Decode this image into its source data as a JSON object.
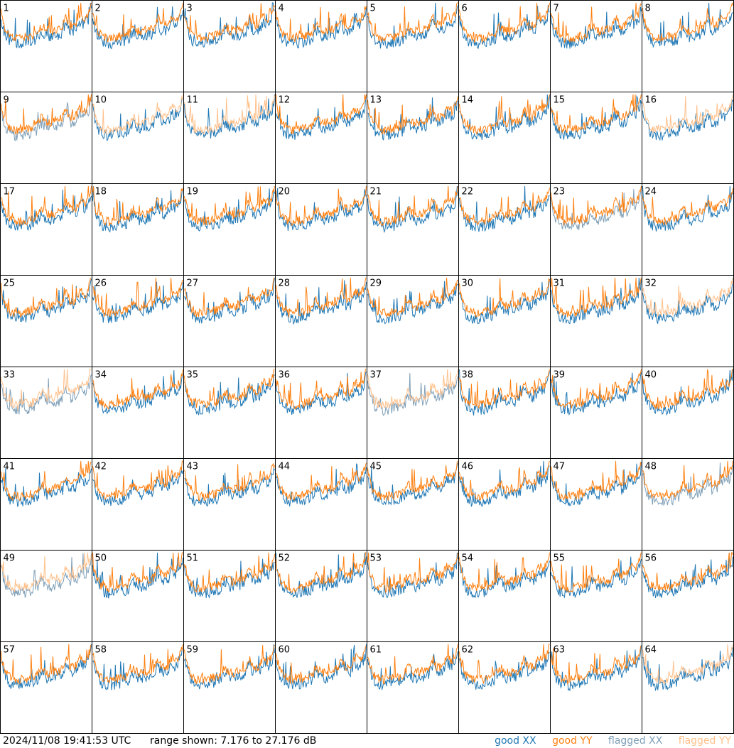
{
  "footer": {
    "timestamp": "2024/11/08 19:41:53 UTC",
    "range_text": "range shown: 7.176 to 27.176 dB"
  },
  "legend": {
    "good_xx": "good XX",
    "good_yy": "good YY",
    "flagged_xx": "flagged XX",
    "flagged_yy": "flagged YY"
  },
  "colors": {
    "good_xx": "#1f77b4",
    "good_yy": "#ff7f0e",
    "flagged_xx": "#7f9fb7",
    "flagged_yy": "#ffc08a",
    "border": "#000000"
  },
  "chart_data": {
    "type": "line",
    "layout": "8x8 small multiples",
    "ylim_db": [
      7.176,
      27.176
    ],
    "panels": [
      {
        "id": "1",
        "xx": "good",
        "yy": "good"
      },
      {
        "id": "2",
        "xx": "good",
        "yy": "good"
      },
      {
        "id": "3",
        "xx": "good",
        "yy": "good"
      },
      {
        "id": "4",
        "xx": "good",
        "yy": "good"
      },
      {
        "id": "5",
        "xx": "good",
        "yy": "good"
      },
      {
        "id": "6",
        "xx": "good",
        "yy": "good"
      },
      {
        "id": "7",
        "xx": "good",
        "yy": "good"
      },
      {
        "id": "8",
        "xx": "good",
        "yy": "good"
      },
      {
        "id": "9",
        "xx": "flagged",
        "yy": "good"
      },
      {
        "id": "10",
        "xx": "good",
        "yy": "flagged"
      },
      {
        "id": "11",
        "xx": "good",
        "yy": "flagged"
      },
      {
        "id": "12",
        "xx": "good",
        "yy": "good"
      },
      {
        "id": "13",
        "xx": "good",
        "yy": "good"
      },
      {
        "id": "14",
        "xx": "good",
        "yy": "good"
      },
      {
        "id": "15",
        "xx": "good",
        "yy": "good"
      },
      {
        "id": "16",
        "xx": "good",
        "yy": "flagged"
      },
      {
        "id": "17",
        "xx": "good",
        "yy": "good"
      },
      {
        "id": "18",
        "xx": "good",
        "yy": "good"
      },
      {
        "id": "19",
        "xx": "good",
        "yy": "good"
      },
      {
        "id": "20",
        "xx": "good",
        "yy": "good"
      },
      {
        "id": "21",
        "xx": "good",
        "yy": "good"
      },
      {
        "id": "22",
        "xx": "good",
        "yy": "good"
      },
      {
        "id": "23",
        "xx": "flagged",
        "yy": "good"
      },
      {
        "id": "24",
        "xx": "good",
        "yy": "good"
      },
      {
        "id": "25",
        "xx": "good",
        "yy": "good"
      },
      {
        "id": "26",
        "xx": "good",
        "yy": "good"
      },
      {
        "id": "27",
        "xx": "good",
        "yy": "good"
      },
      {
        "id": "28",
        "xx": "good",
        "yy": "good"
      },
      {
        "id": "29",
        "xx": "good",
        "yy": "good"
      },
      {
        "id": "30",
        "xx": "good",
        "yy": "good"
      },
      {
        "id": "31",
        "xx": "good",
        "yy": "good"
      },
      {
        "id": "32",
        "xx": "good",
        "yy": "flagged"
      },
      {
        "id": "33",
        "xx": "flagged",
        "yy": "flagged"
      },
      {
        "id": "34",
        "xx": "good",
        "yy": "good"
      },
      {
        "id": "35",
        "xx": "good",
        "yy": "good"
      },
      {
        "id": "36",
        "xx": "good",
        "yy": "good"
      },
      {
        "id": "37",
        "xx": "flagged",
        "yy": "flagged"
      },
      {
        "id": "38",
        "xx": "good",
        "yy": "good"
      },
      {
        "id": "39",
        "xx": "good",
        "yy": "good"
      },
      {
        "id": "40",
        "xx": "good",
        "yy": "good"
      },
      {
        "id": "41",
        "xx": "good",
        "yy": "good"
      },
      {
        "id": "42",
        "xx": "good",
        "yy": "good"
      },
      {
        "id": "43",
        "xx": "good",
        "yy": "good"
      },
      {
        "id": "44",
        "xx": "good",
        "yy": "good"
      },
      {
        "id": "45",
        "xx": "good",
        "yy": "good"
      },
      {
        "id": "46",
        "xx": "good",
        "yy": "good"
      },
      {
        "id": "47",
        "xx": "good",
        "yy": "good"
      },
      {
        "id": "48",
        "xx": "flagged",
        "yy": "good"
      },
      {
        "id": "49",
        "xx": "flagged",
        "yy": "flagged"
      },
      {
        "id": "50",
        "xx": "good",
        "yy": "good"
      },
      {
        "id": "51",
        "xx": "good",
        "yy": "good"
      },
      {
        "id": "52",
        "xx": "good",
        "yy": "good"
      },
      {
        "id": "53",
        "xx": "good",
        "yy": "good"
      },
      {
        "id": "54",
        "xx": "good",
        "yy": "good"
      },
      {
        "id": "55",
        "xx": "good",
        "yy": "good"
      },
      {
        "id": "56",
        "xx": "good",
        "yy": "good"
      },
      {
        "id": "57",
        "xx": "good",
        "yy": "good"
      },
      {
        "id": "58",
        "xx": "good",
        "yy": "good"
      },
      {
        "id": "59",
        "xx": "good",
        "yy": "good"
      },
      {
        "id": "60",
        "xx": "good",
        "yy": "good"
      },
      {
        "id": "61",
        "xx": "good",
        "yy": "good"
      },
      {
        "id": "62",
        "xx": "good",
        "yy": "good"
      },
      {
        "id": "63",
        "xx": "good",
        "yy": "good"
      },
      {
        "id": "64",
        "xx": "good",
        "yy": "flagged"
      }
    ]
  }
}
